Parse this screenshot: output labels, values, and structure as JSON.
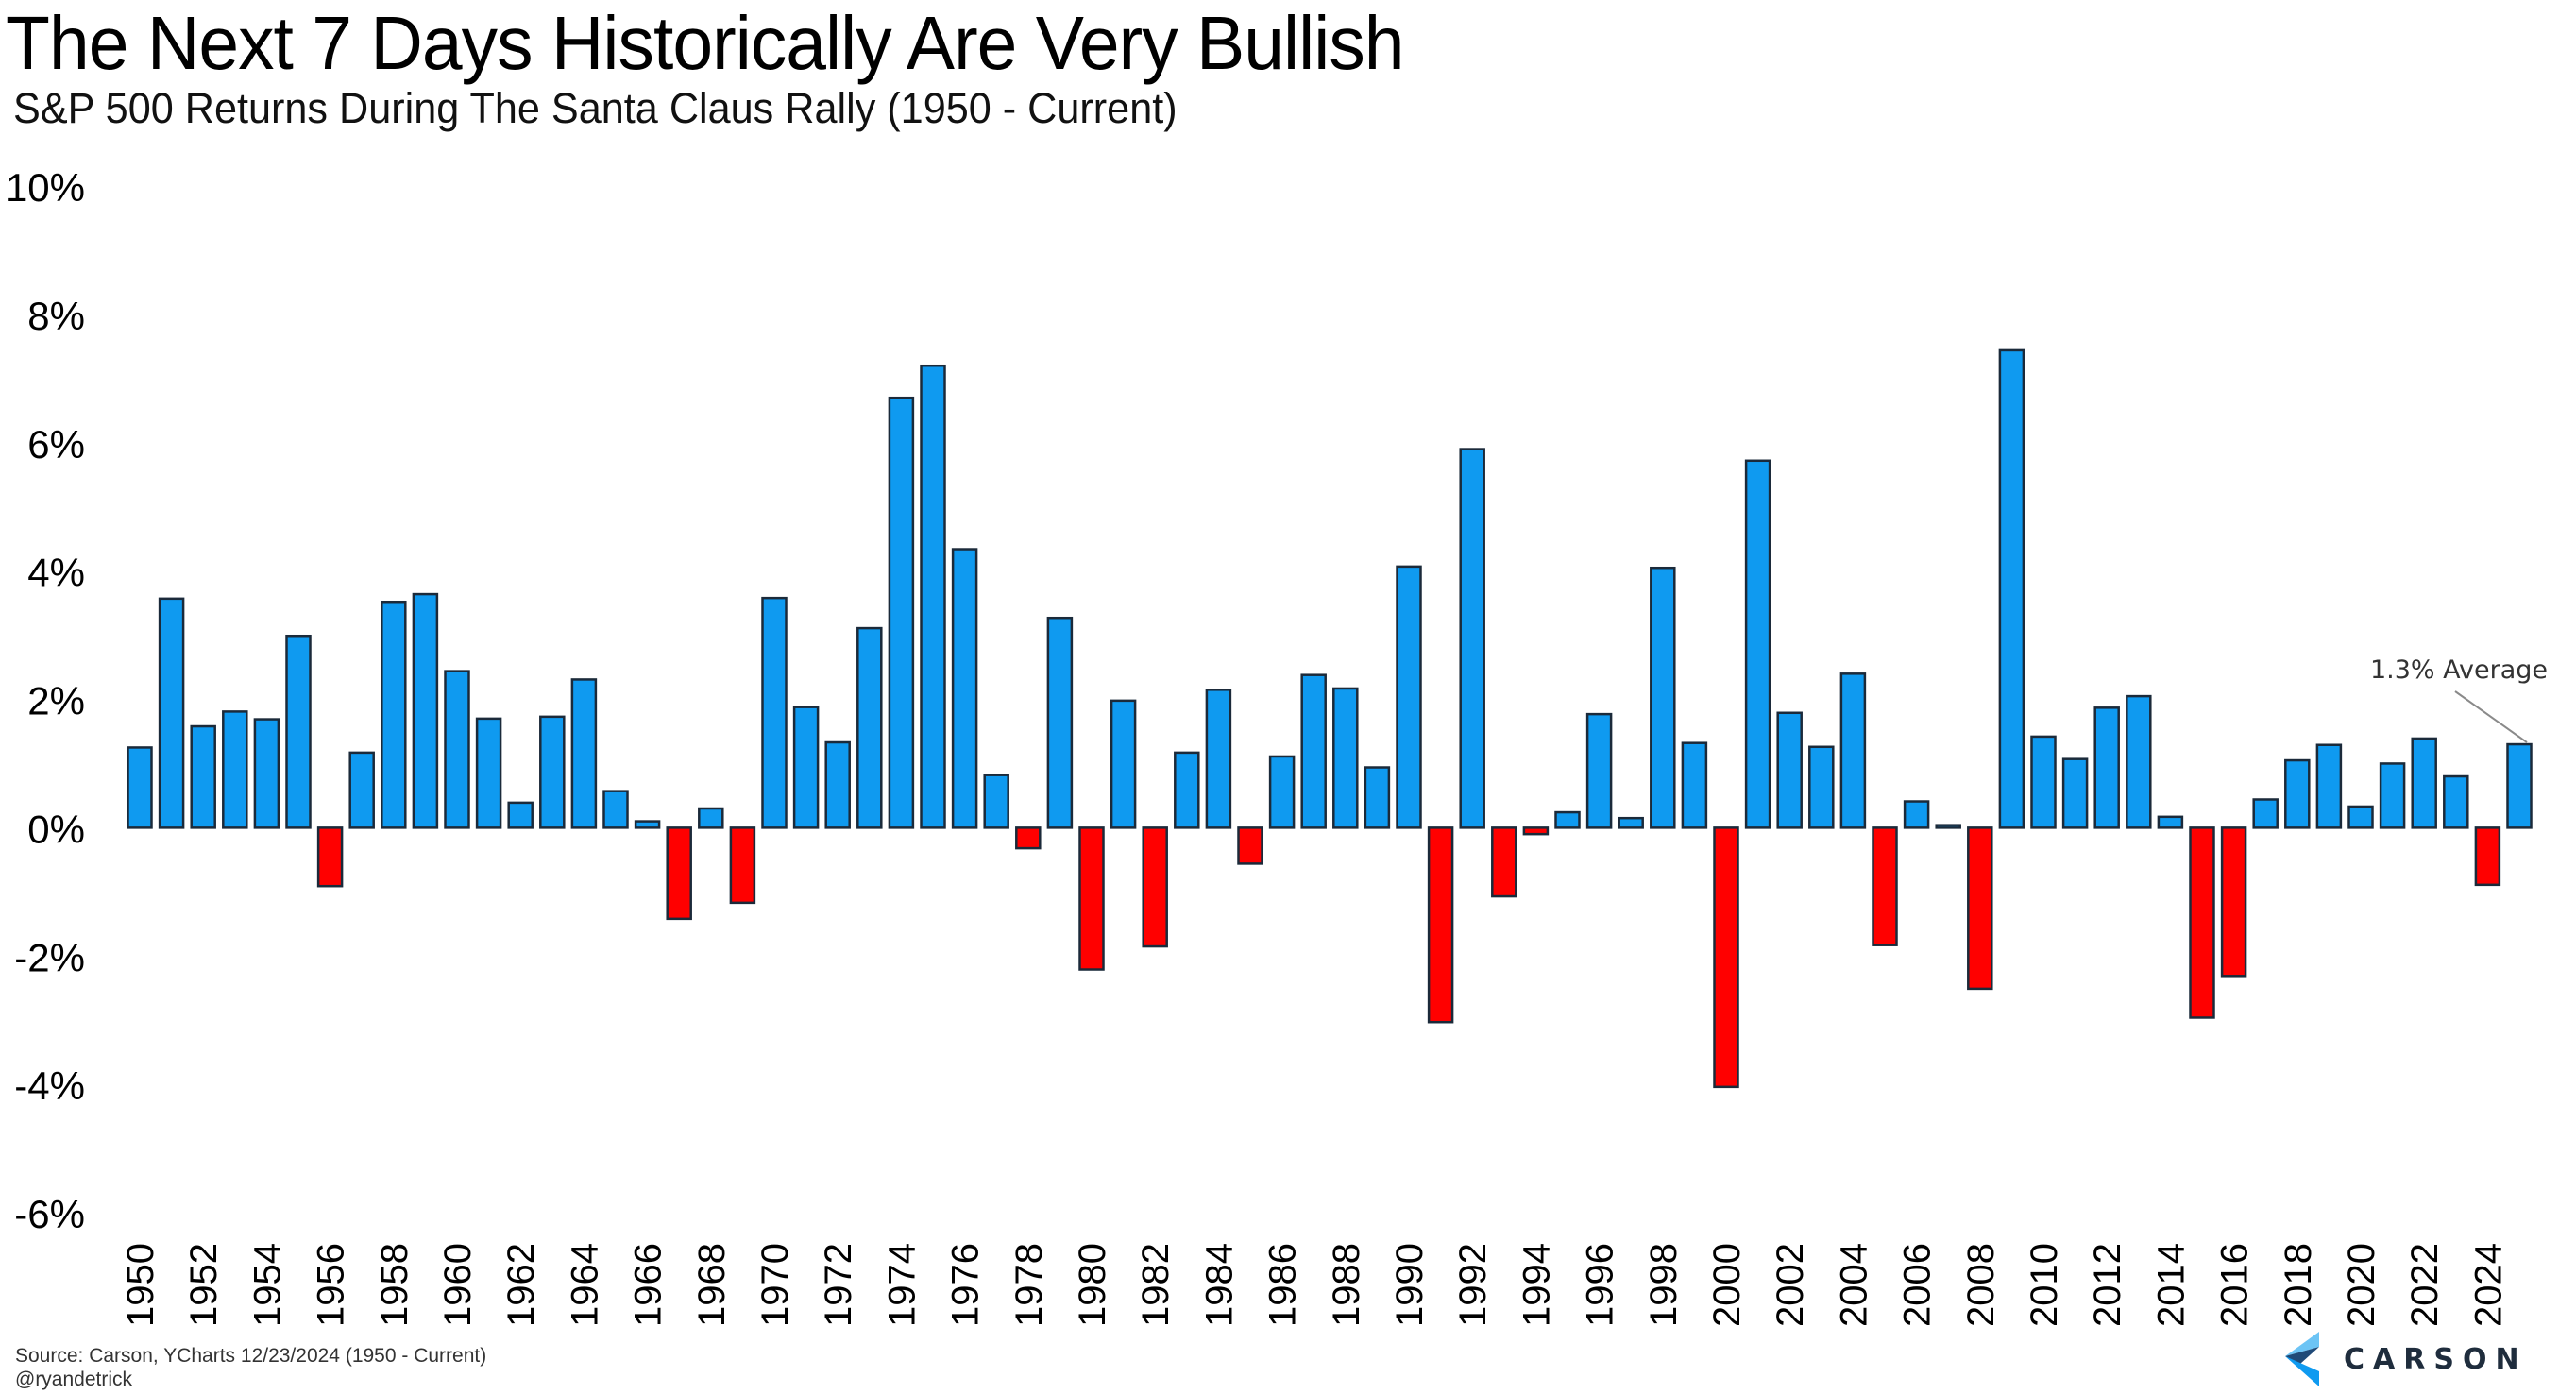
{
  "header": {
    "title": "The Next 7 Days Historically Are Very Bullish",
    "subtitle": "S&P 500 Returns During The Santa Claus Rally (1950 - Current)"
  },
  "footer": {
    "source": "Source: Carson, YCharts 12/23/2024 (1950 - Current)",
    "handle": "@ryandetrick",
    "logo_text": "CARSON"
  },
  "colors": {
    "positive": "#0f9af0",
    "negative": "#ff0000",
    "bar_outline": "#1b2a3a",
    "logo_light": "#6cc4f5",
    "logo_dark": "#1f3a5a"
  },
  "chart_data": {
    "type": "bar",
    "title": "The Next 7 Days Historically Are Very Bullish",
    "subtitle": "S&P 500 Returns During The Santa Claus Rally (1950 - Current)",
    "xlabel": "",
    "ylabel": "",
    "ylim": [
      -6,
      10
    ],
    "yticks": [
      10,
      8,
      6,
      4,
      2,
      0,
      -2,
      -4,
      -6
    ],
    "ytick_labels": [
      "10%",
      "8%",
      "6%",
      "4%",
      "2%",
      "0%",
      "-2%",
      "-4%",
      "-6%"
    ],
    "grid": false,
    "legend": "none",
    "categories": [
      "1950",
      "1951",
      "1952",
      "1953",
      "1954",
      "1955",
      "1956",
      "1957",
      "1958",
      "1959",
      "1960",
      "1961",
      "1962",
      "1963",
      "1964",
      "1965",
      "1966",
      "1967",
      "1968",
      "1969",
      "1970",
      "1971",
      "1972",
      "1973",
      "1974",
      "1975",
      "1976",
      "1977",
      "1978",
      "1979",
      "1980",
      "1981",
      "1982",
      "1983",
      "1984",
      "1985",
      "1986",
      "1987",
      "1988",
      "1989",
      "1990",
      "1991",
      "1992",
      "1993",
      "1994",
      "1995",
      "1996",
      "1997",
      "1998",
      "1999",
      "2000",
      "2001",
      "2002",
      "2003",
      "2004",
      "2005",
      "2006",
      "2007",
      "2008",
      "2009",
      "2010",
      "2011",
      "2012",
      "2013",
      "2014",
      "2015",
      "2016",
      "2017",
      "2018",
      "2019",
      "2020",
      "2021",
      "2022",
      "2023",
      "2024",
      "Average"
    ],
    "xtick_labels": [
      "1950",
      "1952",
      "1954",
      "1956",
      "1958",
      "1960",
      "1962",
      "1964",
      "1966",
      "1968",
      "1970",
      "1972",
      "1974",
      "1976",
      "1978",
      "1980",
      "1982",
      "1984",
      "1986",
      "1988",
      "1990",
      "1992",
      "1994",
      "1996",
      "1998",
      "2000",
      "2002",
      "2004",
      "2006",
      "2008",
      "2010",
      "2012",
      "2014",
      "2016",
      "2018",
      "2020",
      "2022",
      "2024"
    ],
    "values": [
      1.25,
      3.57,
      1.58,
      1.81,
      1.69,
      2.99,
      -0.91,
      1.17,
      3.52,
      3.64,
      2.44,
      1.7,
      0.39,
      1.73,
      2.31,
      0.57,
      0.1,
      -1.42,
      0.3,
      -1.17,
      3.58,
      1.88,
      1.33,
      3.11,
      6.7,
      7.2,
      4.34,
      0.82,
      -0.32,
      3.27,
      -2.21,
      1.98,
      -1.85,
      1.17,
      2.15,
      -0.56,
      1.11,
      2.38,
      2.17,
      0.94,
      4.07,
      -3.03,
      5.9,
      -1.07,
      -0.1,
      0.24,
      1.77,
      0.15,
      4.05,
      1.32,
      -4.04,
      5.72,
      1.79,
      1.26,
      2.4,
      -1.83,
      0.41,
      0.04,
      -2.51,
      7.44,
      1.42,
      1.07,
      1.87,
      2.05,
      0.17,
      -2.96,
      -2.31,
      0.44,
      1.05,
      1.29,
      0.33,
      1.0,
      1.39,
      0.8,
      -0.89,
      1.3
    ],
    "annotations": [
      {
        "text": "1.3% Average",
        "target": "Average",
        "value": 1.3
      }
    ]
  }
}
